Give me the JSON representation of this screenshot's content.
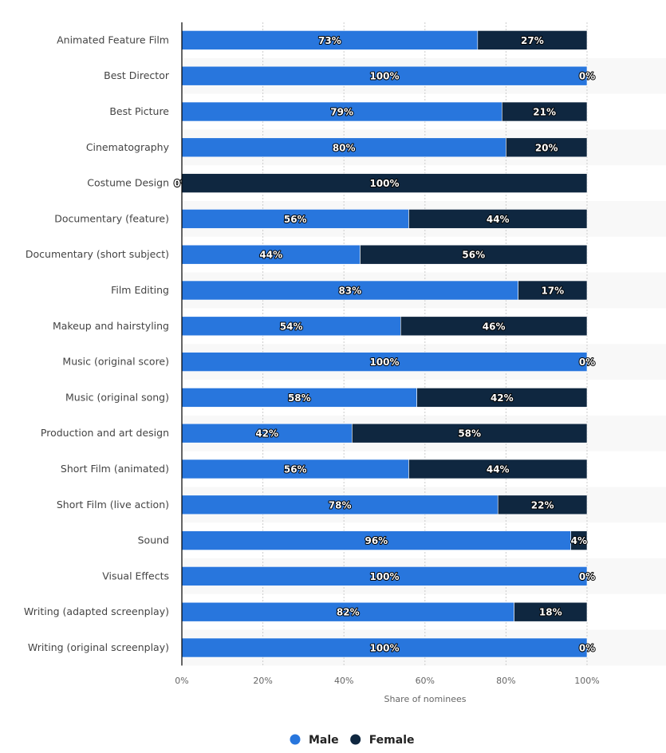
{
  "chart_data": {
    "type": "bar",
    "orientation": "horizontal",
    "stacked": true,
    "categories": [
      "Animated Feature Film",
      "Best Director",
      "Best Picture",
      "Cinematography",
      "Costume Design",
      "Documentary (feature)",
      "Documentary (short subject)",
      "Film Editing",
      "Makeup and hairstyling",
      "Music (original score)",
      "Music (original song)",
      "Production and art design",
      "Short Film (animated)",
      "Short Film (live action)",
      "Sound",
      "Visual Effects",
      "Writing (adapted screenplay)",
      "Writing (original screenplay)"
    ],
    "series": [
      {
        "name": "Male",
        "color": "#2876dd",
        "values": [
          73,
          100,
          79,
          80,
          0,
          56,
          44,
          83,
          54,
          100,
          58,
          42,
          56,
          78,
          96,
          100,
          82,
          100
        ]
      },
      {
        "name": "Female",
        "color": "#0f2740",
        "values": [
          27,
          0,
          21,
          20,
          100,
          44,
          56,
          17,
          46,
          0,
          42,
          58,
          44,
          22,
          4,
          0,
          18,
          0
        ]
      }
    ],
    "xlabel": "Share of nominees",
    "xlim": [
      0,
      100
    ],
    "xticks": [
      "0%",
      "20%",
      "40%",
      "60%",
      "80%",
      "100%"
    ],
    "grid": true,
    "legend": "bottom-center"
  }
}
